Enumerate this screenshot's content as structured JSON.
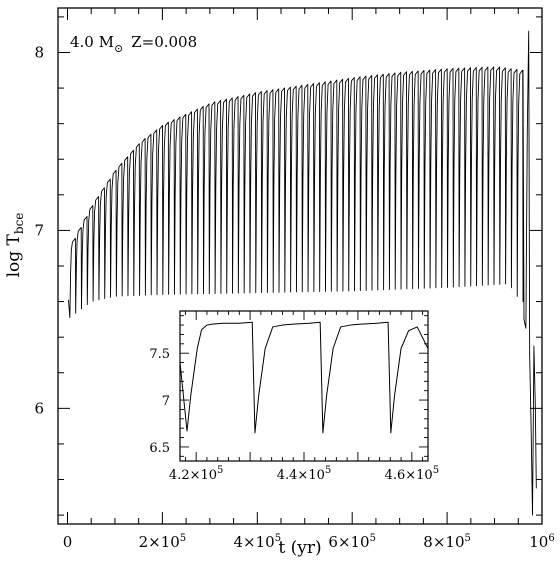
{
  "chart_data": [
    {
      "type": "line",
      "title": "",
      "annotation": {
        "mass": "4.0 M",
        "sun_symbol": "⊙",
        "metallicity": "Z=0.008"
      },
      "xlabel": "t (yr)",
      "ylabel": "log T",
      "ylabel_subscript": "bce",
      "xlim": [
        -20000,
        1000000
      ],
      "ylim": [
        5.35,
        8.25
      ],
      "x_ticks": [
        {
          "value": 0,
          "mant": "0",
          "exp": ""
        },
        {
          "value": 200000,
          "mant": "2×10",
          "exp": "5"
        },
        {
          "value": 400000,
          "mant": "4×10",
          "exp": "5"
        },
        {
          "value": 600000,
          "mant": "6×10",
          "exp": "5"
        },
        {
          "value": 800000,
          "mant": "8×10",
          "exp": "5"
        },
        {
          "value": 1000000,
          "mant": "10",
          "exp": "6"
        }
      ],
      "y_ticks": [
        6,
        7,
        8
      ],
      "series": [
        {
          "pulses": {
            "count": 78,
            "t_start": 5000,
            "t_end": 960000
          },
          "envelope_max": [
            [
              0,
              6.9
            ],
            [
              50000,
              7.15
            ],
            [
              100000,
              7.35
            ],
            [
              150000,
              7.5
            ],
            [
              200000,
              7.6
            ],
            [
              300000,
              7.72
            ],
            [
              400000,
              7.78
            ],
            [
              500000,
              7.82
            ],
            [
              600000,
              7.86
            ],
            [
              700000,
              7.89
            ],
            [
              800000,
              7.91
            ],
            [
              900000,
              7.92
            ],
            [
              955000,
              7.9
            ]
          ],
          "envelope_min": [
            [
              0,
              6.5
            ],
            [
              50000,
              6.6
            ],
            [
              100000,
              6.63
            ],
            [
              200000,
              6.64
            ],
            [
              400000,
              6.65
            ],
            [
              600000,
              6.66
            ],
            [
              800000,
              6.68
            ],
            [
              930000,
              6.7
            ],
            [
              955000,
              6.6
            ]
          ],
          "final_phase": [
            [
              960000,
              7.9
            ],
            [
              962000,
              6.5
            ],
            [
              966000,
              6.45
            ],
            [
              969000,
              7.55
            ],
            [
              972000,
              8.12
            ],
            [
              974000,
              6.3
            ],
            [
              977000,
              5.9
            ],
            [
              980000,
              5.4
            ],
            [
              983000,
              6.35
            ],
            [
              986000,
              6.0
            ],
            [
              988000,
              5.55
            ]
          ]
        }
      ]
    },
    {
      "type": "line",
      "xlim": [
        417000,
        463000
      ],
      "ylim": [
        6.35,
        7.95
      ],
      "x_ticks": [
        {
          "value": 420000,
          "mant": "4.2×10",
          "exp": "5"
        },
        {
          "value": 440000,
          "mant": "4.4×10",
          "exp": "5"
        },
        {
          "value": 460000,
          "mant": "4.6×10",
          "exp": "5"
        }
      ],
      "y_ticks": [
        {
          "value": 6.5,
          "label": "6.5"
        },
        {
          "value": 7,
          "label": "7"
        },
        {
          "value": 7.5,
          "label": "7.5"
        }
      ],
      "series": [
        {
          "x": [
            417000,
            418300,
            419000,
            419600,
            420200,
            421000,
            422000,
            423000,
            425000,
            428000,
            430400,
            430900,
            431600,
            432200,
            432800,
            434200,
            436000,
            438000,
            441000,
            443000,
            443500,
            444200,
            444800,
            445400,
            446800,
            448600,
            450600,
            453600,
            455600,
            456100,
            456800,
            457400,
            458000,
            459400,
            461000,
            463000
          ],
          "y": [
            7.4,
            6.67,
            7.05,
            7.3,
            7.55,
            7.75,
            7.8,
            7.81,
            7.82,
            7.82,
            7.83,
            6.65,
            7.05,
            7.3,
            7.55,
            7.78,
            7.8,
            7.81,
            7.82,
            7.83,
            6.65,
            7.05,
            7.3,
            7.55,
            7.78,
            7.8,
            7.81,
            7.82,
            7.83,
            6.65,
            7.05,
            7.3,
            7.55,
            7.74,
            7.78,
            7.55
          ]
        }
      ]
    }
  ]
}
